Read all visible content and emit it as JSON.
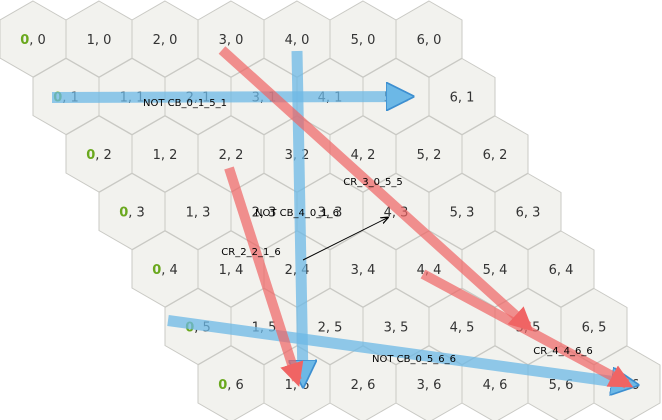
{
  "board": {
    "columns": 7,
    "rows": 7,
    "cell_label_separator": ", "
  },
  "colors": {
    "hex_fill": "#f2f2ee",
    "hex_stroke": "#c9c9c4",
    "text": "#333333",
    "first_column_text": "#6aa81e",
    "blue_arrow": "#6cb8e6",
    "red_arrow": "#f06464",
    "black_arrow": "#000000"
  },
  "arrows": [
    {
      "kind": "blue",
      "label": "NOT CB_0_1_5_1",
      "from": [
        0,
        1
      ],
      "to": [
        5,
        1
      ]
    },
    {
      "kind": "blue",
      "label": "NOT CB_4_0_1_6",
      "from": [
        4,
        0
      ],
      "to": [
        1,
        6
      ]
    },
    {
      "kind": "blue",
      "label": "NOT CB_0_5_6_6",
      "from": [
        0,
        5
      ],
      "to": [
        6,
        6
      ]
    },
    {
      "kind": "red",
      "label": "CR_3_0_5_5",
      "from": [
        3,
        0
      ],
      "to": [
        5,
        5
      ]
    },
    {
      "kind": "red",
      "label": "CR_2_2_1_6",
      "from": [
        2,
        2
      ],
      "to": [
        1,
        6
      ]
    },
    {
      "kind": "red",
      "label": "CR_4_4_6_6",
      "from": [
        4,
        4
      ],
      "to": [
        6,
        6
      ]
    },
    {
      "kind": "black",
      "label": "",
      "from": [
        2,
        4
      ],
      "to": [
        4,
        3
      ]
    }
  ]
}
